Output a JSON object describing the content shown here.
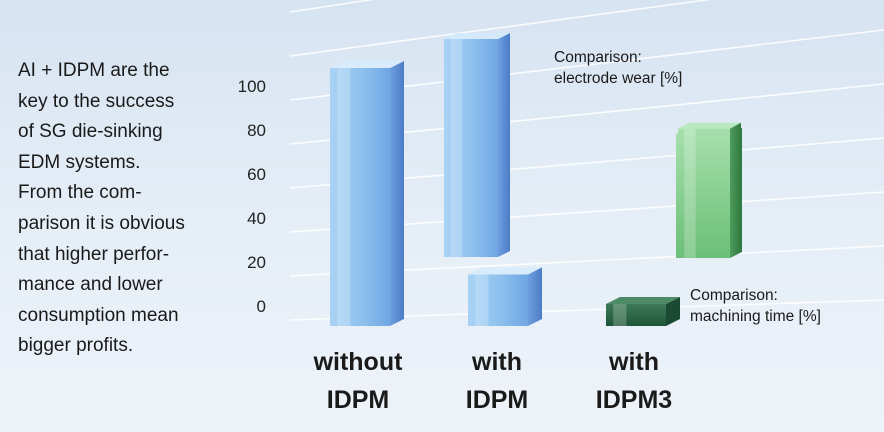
{
  "description_lines": [
    "AI + IDPM are the",
    "key to the success",
    "of SG die-sinking",
    "EDM systems.",
    "From the com-",
    "parison it is obvious",
    "that higher perfor-",
    "mance and lower",
    "consumption mean",
    "bigger profits."
  ],
  "chart_data": {
    "type": "bar",
    "categories": [
      [
        "without",
        "IDPM"
      ],
      [
        "with",
        "IDPM"
      ],
      [
        "with",
        "IDPM3"
      ]
    ],
    "y_ticks": [
      "100",
      "80",
      "60",
      "40",
      "20",
      "0"
    ],
    "ylim": [
      0,
      100
    ],
    "series": [
      {
        "name": "Comparison: electrode wear [%]",
        "name_lines": [
          "Comparison:",
          "electrode wear [%]"
        ],
        "row": "back",
        "values": [
          null,
          100,
          57
        ],
        "colors": {
          "front": "#8fc2ef",
          "side": "#5c92d3",
          "top": "#d4e9fa"
        }
      },
      {
        "name": "Comparison: machining time [%]",
        "name_lines": [
          "Comparison:",
          "machining time [%]"
        ],
        "row": "front",
        "values": [
          100,
          20,
          5
        ],
        "colors": {
          "front": "#93c6f0",
          "side": "#6e9fdc",
          "top": "#d8ecfb"
        }
      }
    ],
    "highlight": {
      "series": "back",
      "category_index": 2,
      "colors": {
        "front": "#7ec886",
        "side": "#3a8a4a",
        "top": "#b9e7bf"
      }
    },
    "front_highlight": {
      "category_index": 2,
      "colors": {
        "front": "#2f6a48",
        "side": "#1a4a32",
        "top": "#4d8a66"
      }
    },
    "grid": true
  }
}
